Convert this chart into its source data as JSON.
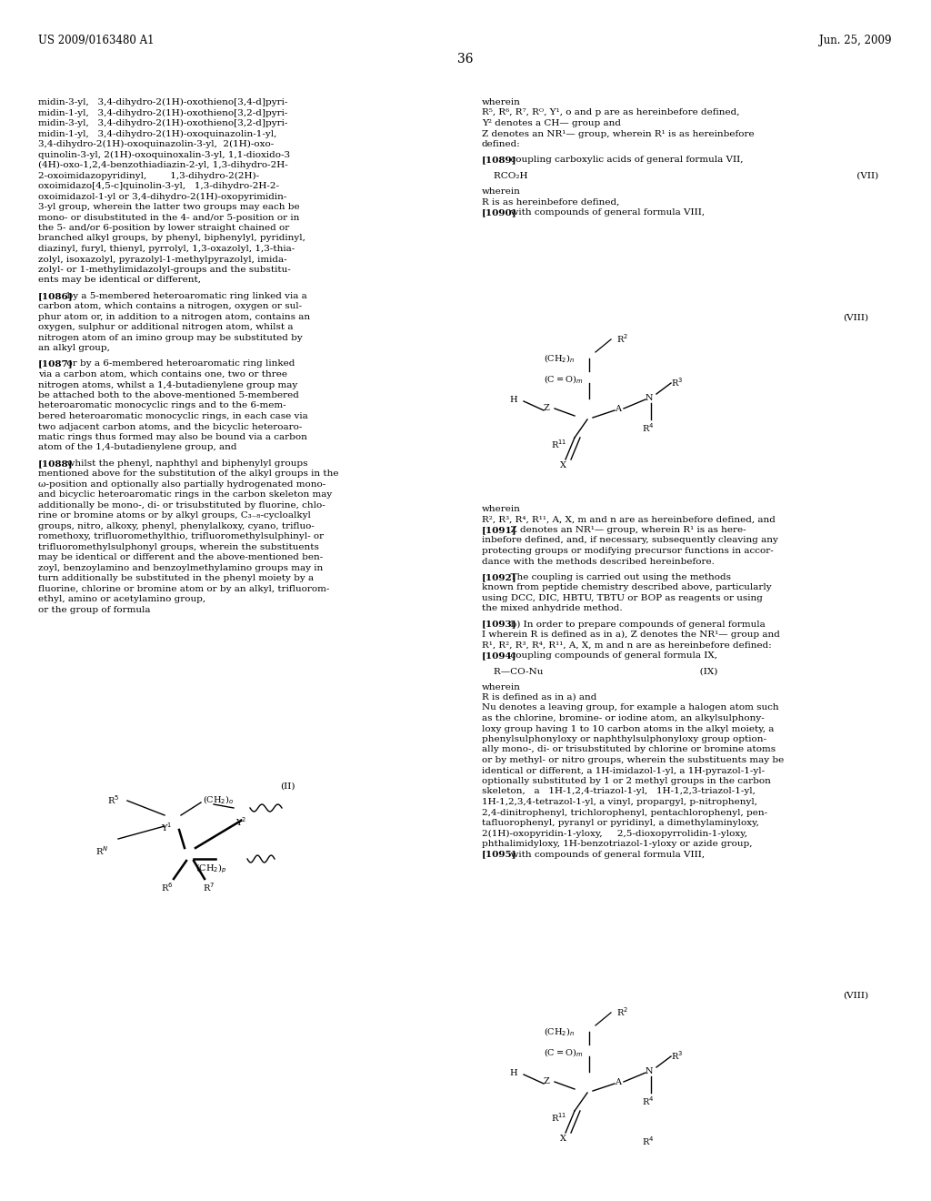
{
  "page_header_left": "US 2009/0163480 A1",
  "page_header_right": "Jun. 25, 2009",
  "page_number": "36",
  "bg": "#ffffff",
  "tc": "#000000",
  "fs": 7.5,
  "fsh": 8.5,
  "fsp": 10.0
}
